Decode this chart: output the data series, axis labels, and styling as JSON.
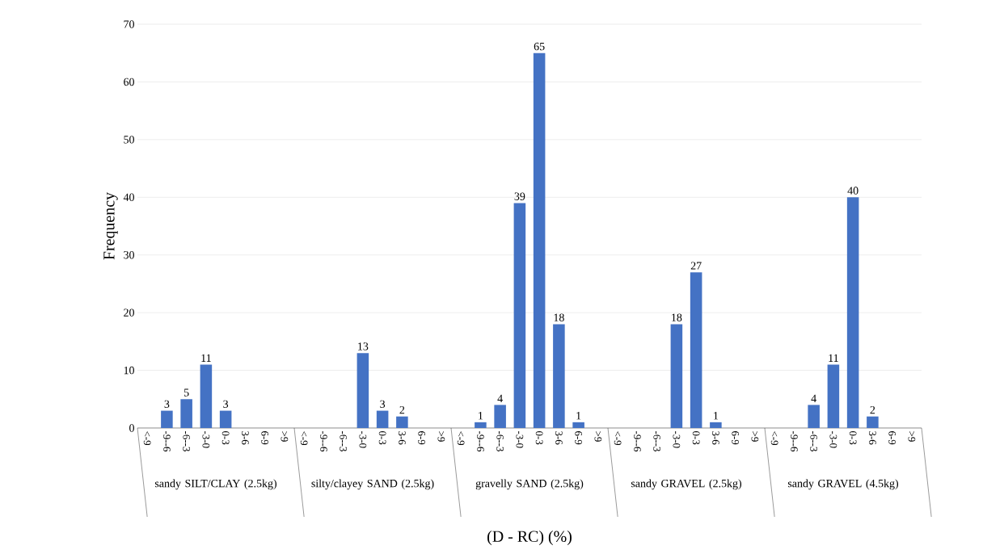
{
  "chart_data": {
    "type": "bar",
    "xlabel": "(D - RC) (%)",
    "ylabel": "Frequency",
    "color": "#4472c4",
    "categories": [
      "<-9",
      "-9--6",
      "-6--3",
      "-3-0",
      "0-3",
      "3-6",
      "6-9",
      ">9",
      "<-9",
      "-9--6",
      "-6--3",
      "-3-0",
      "0-3",
      "3-6",
      "6-9",
      ">9",
      "<-9",
      "-9--6",
      "-6--3",
      "-3-0",
      "0-3",
      "3-6",
      "6-9",
      ">9",
      "<-9",
      "-9--6",
      "-6--3",
      "-3-0",
      "0-3",
      "3-6",
      "6-9",
      ">9",
      "<-9",
      "-9--6",
      "-6--3",
      "-3-0",
      "0-3",
      "3-6",
      "6-9",
      ">9"
    ],
    "values": [
      0,
      3,
      5,
      11,
      3,
      0,
      0,
      0,
      0,
      0,
      0,
      13,
      3,
      2,
      0,
      0,
      0,
      1,
      4,
      39,
      65,
      18,
      1,
      0,
      0,
      0,
      0,
      18,
      27,
      1,
      0,
      0,
      0,
      0,
      4,
      11,
      40,
      2,
      0,
      0
    ],
    "value_labels": [
      null,
      "3",
      "5",
      "11",
      "3",
      null,
      null,
      null,
      null,
      null,
      null,
      "13",
      "3",
      "2",
      null,
      null,
      null,
      "1",
      "4",
      "39",
      "65",
      "18",
      "1",
      null,
      null,
      null,
      null,
      "18",
      "27",
      "1",
      null,
      null,
      null,
      null,
      "4",
      "11",
      "40",
      "2",
      null,
      null
    ],
    "ylim": [
      0,
      70
    ],
    "yticks": [
      0,
      10,
      20,
      30,
      40,
      50,
      60,
      70
    ],
    "grid": "y",
    "annotations": [
      "sandy SILT/CLAY (2.5kg)",
      "silty/clayey SAND (2.5kg)",
      "gravelly SAND (2.5kg)",
      "sandy GRAVEL (2.5kg)",
      "sandy GRAVEL (4.5kg)"
    ]
  }
}
